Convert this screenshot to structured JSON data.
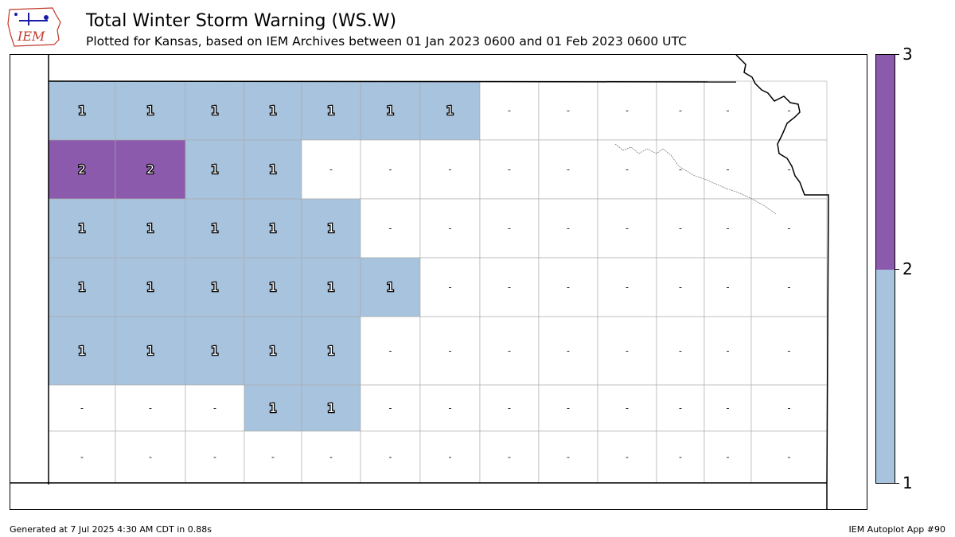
{
  "header": {
    "logo_text": "IEM",
    "title": "Total Winter Storm Warning (WS.W)",
    "subtitle": "Plotted for Kansas, based on IEM Archives  between 01 Jan 2023 0600 and 01 Feb 2023 0600 UTC"
  },
  "colors": {
    "zero": "#ffffff",
    "one": "#a8c3de",
    "two": "#8c5aad",
    "boundary": "#000000",
    "county_line": "#a9a9a9"
  },
  "colorbar": {
    "ticks": [
      "1",
      "2",
      "3"
    ]
  },
  "footer": {
    "generated": "Generated at 7 Jul 2025 4:30 AM CDT in 0.88s",
    "app": "IEM Autoplot App #90"
  },
  "map_data": {
    "zero_label": "-",
    "counties": [
      {
        "row": 0,
        "col": 0,
        "value": 1
      },
      {
        "row": 0,
        "col": 1,
        "value": 1
      },
      {
        "row": 0,
        "col": 2,
        "value": 1
      },
      {
        "row": 0,
        "col": 3,
        "value": 1
      },
      {
        "row": 0,
        "col": 4,
        "value": 1
      },
      {
        "row": 0,
        "col": 5,
        "value": 1
      },
      {
        "row": 0,
        "col": 6,
        "value": 1
      },
      {
        "row": 0,
        "col": 7,
        "value": 0
      },
      {
        "row": 0,
        "col": 8,
        "value": 0
      },
      {
        "row": 0,
        "col": 9,
        "value": 0
      },
      {
        "row": 0,
        "col": 10,
        "value": 0
      },
      {
        "row": 0,
        "col": 11,
        "value": 0
      },
      {
        "row": 0,
        "col": 12,
        "value": 0
      },
      {
        "row": 1,
        "col": 0,
        "value": 2
      },
      {
        "row": 1,
        "col": 1,
        "value": 2
      },
      {
        "row": 1,
        "col": 2,
        "value": 1
      },
      {
        "row": 1,
        "col": 3,
        "value": 1
      },
      {
        "row": 1,
        "col": 4,
        "value": 0
      },
      {
        "row": 1,
        "col": 5,
        "value": 0
      },
      {
        "row": 1,
        "col": 6,
        "value": 0
      },
      {
        "row": 1,
        "col": 7,
        "value": 0
      },
      {
        "row": 1,
        "col": 8,
        "value": 0
      },
      {
        "row": 1,
        "col": 9,
        "value": 0
      },
      {
        "row": 1,
        "col": 10,
        "value": 0
      },
      {
        "row": 1,
        "col": 11,
        "value": 0
      },
      {
        "row": 1,
        "col": 12,
        "value": 0
      },
      {
        "row": 2,
        "col": 0,
        "value": 1
      },
      {
        "row": 2,
        "col": 1,
        "value": 1
      },
      {
        "row": 2,
        "col": 2,
        "value": 1
      },
      {
        "row": 2,
        "col": 3,
        "value": 1
      },
      {
        "row": 2,
        "col": 4,
        "value": 1
      },
      {
        "row": 2,
        "col": 5,
        "value": 0
      },
      {
        "row": 2,
        "col": 6,
        "value": 0
      },
      {
        "row": 2,
        "col": 7,
        "value": 0
      },
      {
        "row": 2,
        "col": 8,
        "value": 0
      },
      {
        "row": 2,
        "col": 9,
        "value": 0
      },
      {
        "row": 2,
        "col": 10,
        "value": 0
      },
      {
        "row": 2,
        "col": 11,
        "value": 0
      },
      {
        "row": 2,
        "col": 12,
        "value": 0
      },
      {
        "row": 3,
        "col": 0,
        "value": 1
      },
      {
        "row": 3,
        "col": 1,
        "value": 1
      },
      {
        "row": 3,
        "col": 2,
        "value": 1
      },
      {
        "row": 3,
        "col": 3,
        "value": 1
      },
      {
        "row": 3,
        "col": 4,
        "value": 1
      },
      {
        "row": 3,
        "col": 5,
        "value": 1
      },
      {
        "row": 3,
        "col": 6,
        "value": 0
      },
      {
        "row": 3,
        "col": 7,
        "value": 0
      },
      {
        "row": 3,
        "col": 8,
        "value": 0
      },
      {
        "row": 3,
        "col": 9,
        "value": 0
      },
      {
        "row": 3,
        "col": 10,
        "value": 0
      },
      {
        "row": 3,
        "col": 11,
        "value": 0
      },
      {
        "row": 3,
        "col": 12,
        "value": 0
      },
      {
        "row": 4,
        "col": 0,
        "value": 1
      },
      {
        "row": 4,
        "col": 1,
        "value": 1
      },
      {
        "row": 4,
        "col": 2,
        "value": 1
      },
      {
        "row": 4,
        "col": 3,
        "value": 1
      },
      {
        "row": 4,
        "col": 4,
        "value": 1
      },
      {
        "row": 4,
        "col": 5,
        "value": 0
      },
      {
        "row": 4,
        "col": 6,
        "value": 0
      },
      {
        "row": 4,
        "col": 7,
        "value": 0
      },
      {
        "row": 4,
        "col": 8,
        "value": 0
      },
      {
        "row": 4,
        "col": 9,
        "value": 0
      },
      {
        "row": 4,
        "col": 10,
        "value": 0
      },
      {
        "row": 4,
        "col": 11,
        "value": 0
      },
      {
        "row": 4,
        "col": 12,
        "value": 0
      },
      {
        "row": 5,
        "col": 0,
        "value": 0
      },
      {
        "row": 5,
        "col": 1,
        "value": 0
      },
      {
        "row": 5,
        "col": 2,
        "value": 0
      },
      {
        "row": 5,
        "col": 3,
        "value": 1
      },
      {
        "row": 5,
        "col": 4,
        "value": 1
      },
      {
        "row": 5,
        "col": 5,
        "value": 0
      },
      {
        "row": 5,
        "col": 6,
        "value": 0
      },
      {
        "row": 5,
        "col": 7,
        "value": 0
      },
      {
        "row": 5,
        "col": 8,
        "value": 0
      },
      {
        "row": 5,
        "col": 9,
        "value": 0
      },
      {
        "row": 5,
        "col": 10,
        "value": 0
      },
      {
        "row": 5,
        "col": 11,
        "value": 0
      },
      {
        "row": 5,
        "col": 12,
        "value": 0
      },
      {
        "row": 6,
        "col": 0,
        "value": 0
      },
      {
        "row": 6,
        "col": 1,
        "value": 0
      },
      {
        "row": 6,
        "col": 2,
        "value": 0
      },
      {
        "row": 6,
        "col": 3,
        "value": 0
      },
      {
        "row": 6,
        "col": 4,
        "value": 0
      },
      {
        "row": 6,
        "col": 5,
        "value": 0
      },
      {
        "row": 6,
        "col": 6,
        "value": 0
      },
      {
        "row": 6,
        "col": 7,
        "value": 0
      },
      {
        "row": 6,
        "col": 8,
        "value": 0
      },
      {
        "row": 6,
        "col": 9,
        "value": 0
      },
      {
        "row": 6,
        "col": 10,
        "value": 0
      },
      {
        "row": 6,
        "col": 11,
        "value": 0
      },
      {
        "row": 6,
        "col": 12,
        "value": 0
      }
    ]
  }
}
